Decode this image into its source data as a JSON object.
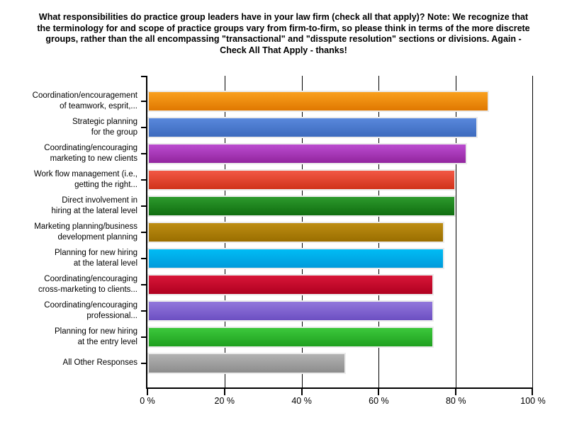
{
  "chart_data": {
    "type": "bar",
    "orientation": "horizontal",
    "title": "What responsibilities do practice group leaders have in your law firm (check all that apply)?  Note: We recognize that the terminology for and scope of practice groups vary from firm-to-firm, so please think in terms of the more discrete groups, rather than the all encompassing \"transactional\" and \"disspute resolution\" sections or divisions.  Again - Check All That Apply - thanks!",
    "categories": [
      "Coordination/encouragement\nof teamwork, esprit,...",
      "Strategic planning\nfor the group",
      "Coordinating/encouraging\nmarketing to new clients",
      "Work flow management (i.e.,\ngetting the right...",
      "Direct involvement in\nhiring at the lateral level",
      "Marketing planning/business\ndevelopment planning",
      "Planning for new hiring\nat the lateral level",
      "Coordinating/encouraging\ncross-marketing to clients...",
      "Coordinating/encouraging\nprofessional...",
      "Planning for new hiring\nat the entry level",
      "All Other Responses"
    ],
    "values": [
      88.6,
      85.7,
      82.9,
      80.0,
      80.0,
      77.1,
      77.1,
      74.3,
      74.3,
      74.3,
      51.4
    ],
    "unit": "%",
    "bar_colors": [
      {
        "top": "#F9A01E",
        "bottom": "#E07800"
      },
      {
        "top": "#5988DC",
        "bottom": "#3C6ABD"
      },
      {
        "top": "#BB4CD0",
        "bottom": "#92259E"
      },
      {
        "top": "#F25845",
        "bottom": "#D0331A"
      },
      {
        "top": "#2D9A2D",
        "bottom": "#106E10"
      },
      {
        "top": "#BD8D13",
        "bottom": "#9A6E00"
      },
      {
        "top": "#00BCF5",
        "bottom": "#009ADB"
      },
      {
        "top": "#D81638",
        "bottom": "#B00020"
      },
      {
        "top": "#9277DC",
        "bottom": "#6C4FC2"
      },
      {
        "top": "#3CC83C",
        "bottom": "#1FA01F"
      },
      {
        "top": "#B3B3B3",
        "bottom": "#8C8C8C"
      }
    ],
    "x_axis": {
      "range": [
        0,
        100
      ],
      "ticks": [
        0,
        20,
        40,
        60,
        80,
        100
      ],
      "tick_labels": [
        "0 %",
        "20 %",
        "40 %",
        "60 %",
        "80 %",
        "100 %"
      ]
    },
    "grid": "vertical",
    "legend": "none",
    "axis_color": "#000000",
    "bar_border_color": "#EBEBEB",
    "background": "#FFFFFF"
  }
}
